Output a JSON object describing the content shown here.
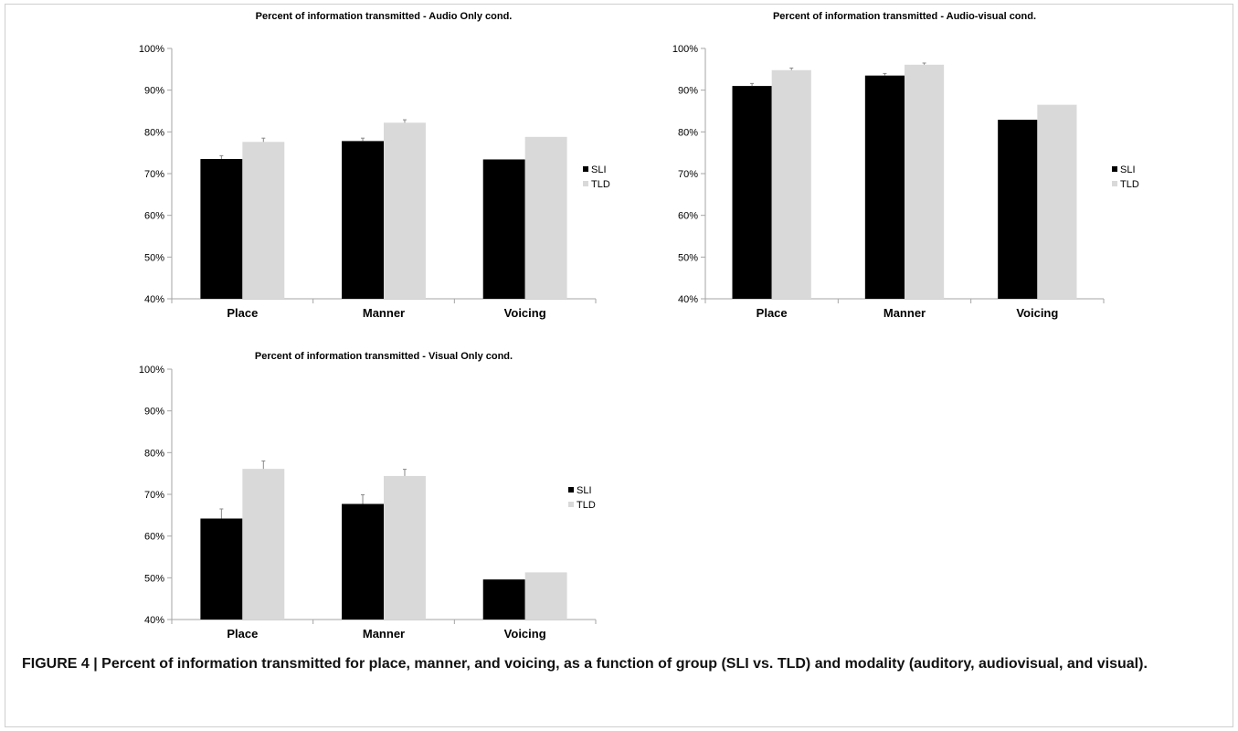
{
  "colors": {
    "sli": "#000000",
    "tld": "#d9d9d9",
    "axis": "#a6a6a6"
  },
  "chart_data": [
    {
      "type": "bar",
      "title": "Percent of information transmitted - Audio Only cond.",
      "categories": [
        "Place",
        "Manner",
        "Voicing"
      ],
      "ylim": [
        40,
        100
      ],
      "yticks": [
        "40%",
        "50%",
        "60%",
        "70%",
        "80%",
        "90%",
        "100%"
      ],
      "legend_position": "right",
      "series": [
        {
          "name": "SLI",
          "values": [
            73.5,
            77.8,
            73.4
          ],
          "errors": [
            0.8,
            0.7,
            0
          ]
        },
        {
          "name": "TLD",
          "values": [
            77.6,
            82.2,
            78.8
          ],
          "errors": [
            0.9,
            0.7,
            0
          ]
        }
      ]
    },
    {
      "type": "bar",
      "title": "Percent of information transmitted  - Audio-visual cond.",
      "categories": [
        "Place",
        "Manner",
        "Voicing"
      ],
      "ylim": [
        40,
        100
      ],
      "yticks": [
        "40%",
        "50%",
        "60%",
        "70%",
        "80%",
        "90%",
        "100%"
      ],
      "legend_position": "right",
      "series": [
        {
          "name": "SLI",
          "values": [
            91.0,
            93.5,
            82.9
          ],
          "errors": [
            0.6,
            0.5,
            0
          ]
        },
        {
          "name": "TLD",
          "values": [
            94.8,
            96.1,
            86.5
          ],
          "errors": [
            0.5,
            0.4,
            0
          ]
        }
      ]
    },
    {
      "type": "bar",
      "title": "Percent of information transmitted - Visual Only cond.",
      "categories": [
        "Place",
        "Manner",
        "Voicing"
      ],
      "ylim": [
        40,
        100
      ],
      "yticks": [
        "40%",
        "50%",
        "60%",
        "70%",
        "80%",
        "90%",
        "100%"
      ],
      "legend_position": "right",
      "series": [
        {
          "name": "SLI",
          "values": [
            64.2,
            67.7,
            49.6
          ],
          "errors": [
            2.3,
            2.2,
            0
          ]
        },
        {
          "name": "TLD",
          "values": [
            76.1,
            74.4,
            51.3
          ],
          "errors": [
            1.9,
            1.6,
            0
          ]
        }
      ]
    }
  ],
  "caption": "FIGURE 4 | Percent of information transmitted for place, manner, and voicing, as a function of group (SLI vs. TLD) and modality (auditory, audiovisual, and visual)."
}
